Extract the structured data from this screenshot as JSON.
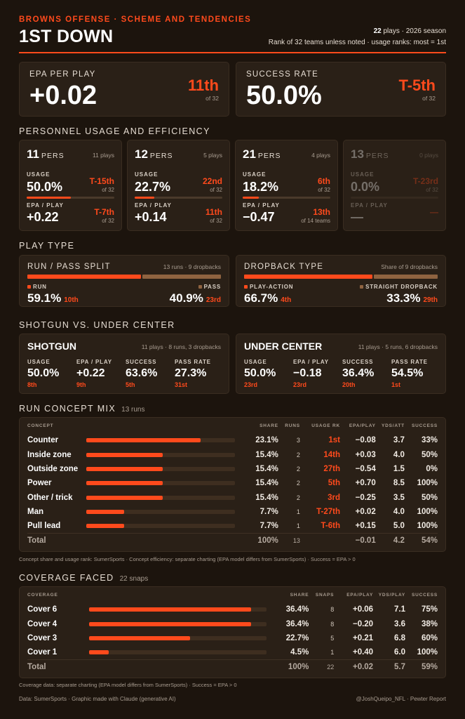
{
  "header": {
    "kicker": "BROWNS OFFENSE · SCHEME AND TENDENCIES",
    "title": "1ST DOWN",
    "plays": "22",
    "plays_suffix": " plays · 2026 season",
    "note": "Rank of 32 teams unless noted · usage ranks: most = 1st"
  },
  "epa": {
    "label": "EPA PER PLAY",
    "value": "+0.02",
    "rank": "11th",
    "of": "of 32"
  },
  "success": {
    "label": "SUCCESS RATE",
    "value": "50.0%",
    "rank": "T-5th",
    "of": "of 32"
  },
  "personnel": {
    "title": "PERSONNEL USAGE AND EFFICIENCY",
    "usage_label": "USAGE",
    "epa_label": "EPA / PLAY",
    "pers_word": "PERS",
    "groups": [
      {
        "num": "11",
        "plays": "11 plays",
        "usage": "50.0%",
        "usage_fill": 0.5,
        "usage_rank": "T-15th",
        "usage_of": "of 32",
        "epa": "+0.22",
        "epa_rank": "T-7th",
        "epa_of": "of 32"
      },
      {
        "num": "12",
        "plays": "5 plays",
        "usage": "22.7%",
        "usage_fill": 0.227,
        "usage_rank": "22nd",
        "usage_of": "of 32",
        "epa": "+0.14",
        "epa_rank": "11th",
        "epa_of": "of 32"
      },
      {
        "num": "21",
        "plays": "4 plays",
        "usage": "18.2%",
        "usage_fill": 0.182,
        "usage_rank": "6th",
        "usage_of": "of 32",
        "epa": "−0.47",
        "epa_rank": "13th",
        "epa_of": "of 14 teams"
      },
      {
        "num": "13",
        "plays": "0 plays",
        "usage": "0.0%",
        "usage_fill": 0,
        "usage_rank": "T-23rd",
        "usage_of": "of 32",
        "epa": "—",
        "epa_rank": "—",
        "epa_of": ""
      }
    ]
  },
  "play_type": {
    "title": "PLAY TYPE",
    "run_pass": {
      "title": "RUN / PASS SPLIT",
      "note": "13 runs · 9 dropbacks",
      "left_label": "RUN",
      "left_pct": "59.1%",
      "left_fill": 0.591,
      "left_rank": "10th",
      "right_label": "PASS",
      "right_pct": "40.9%",
      "right_rank": "23rd"
    },
    "dropback": {
      "title": "DROPBACK TYPE",
      "note": "Share of 9 dropbacks",
      "left_label": "PLAY-ACTION",
      "left_pct": "66.7%",
      "left_fill": 0.667,
      "left_rank": "4th",
      "right_label": "STRAIGHT DROPBACK",
      "right_pct": "33.3%",
      "right_rank": "29th"
    }
  },
  "formation": {
    "title": "SHOTGUN VS. UNDER CENTER",
    "cards": [
      {
        "title": "SHOTGUN",
        "note": "11 plays · 8 runs, 3 dropbacks",
        "stats": [
          {
            "label": "USAGE",
            "value": "50.0%",
            "rank": "8th"
          },
          {
            "label": "EPA / PLAY",
            "value": "+0.22",
            "rank": "9th"
          },
          {
            "label": "SUCCESS",
            "value": "63.6%",
            "rank": "5th"
          },
          {
            "label": "PASS RATE",
            "value": "27.3%",
            "rank": "31st"
          }
        ]
      },
      {
        "title": "UNDER CENTER",
        "note": "11 plays · 5 runs, 6 dropbacks",
        "stats": [
          {
            "label": "USAGE",
            "value": "50.0%",
            "rank": "23rd"
          },
          {
            "label": "EPA / PLAY",
            "value": "−0.18",
            "rank": "23rd"
          },
          {
            "label": "SUCCESS",
            "value": "36.4%",
            "rank": "20th"
          },
          {
            "label": "PASS RATE",
            "value": "54.5%",
            "rank": "1st"
          }
        ]
      }
    ]
  },
  "run_concepts": {
    "title": "RUN CONCEPT MIX",
    "sub": "13 runs",
    "columns": [
      "CONCEPT",
      "SHARE",
      "RUNS",
      "USAGE RK",
      "EPA/PLAY",
      "YDS/ATT",
      "SUCCESS"
    ],
    "rows": [
      {
        "name": "Counter",
        "share": "23.1%",
        "fill": 0.231,
        "runs": "3",
        "rank": "1st",
        "epa": "−0.08",
        "yds": "3.7",
        "succ": "33%"
      },
      {
        "name": "Inside zone",
        "share": "15.4%",
        "fill": 0.154,
        "runs": "2",
        "rank": "14th",
        "epa": "+0.03",
        "yds": "4.0",
        "succ": "50%"
      },
      {
        "name": "Outside zone",
        "share": "15.4%",
        "fill": 0.154,
        "runs": "2",
        "rank": "27th",
        "epa": "−0.54",
        "yds": "1.5",
        "succ": "0%"
      },
      {
        "name": "Power",
        "share": "15.4%",
        "fill": 0.154,
        "runs": "2",
        "rank": "5th",
        "epa": "+0.70",
        "yds": "8.5",
        "succ": "100%"
      },
      {
        "name": "Other / trick",
        "share": "15.4%",
        "fill": 0.154,
        "runs": "2",
        "rank": "3rd",
        "epa": "−0.25",
        "yds": "3.5",
        "succ": "50%"
      },
      {
        "name": "Man",
        "share": "7.7%",
        "fill": 0.077,
        "runs": "1",
        "rank": "T-27th",
        "epa": "+0.02",
        "yds": "4.0",
        "succ": "100%"
      },
      {
        "name": "Pull lead",
        "share": "7.7%",
        "fill": 0.077,
        "runs": "1",
        "rank": "T-6th",
        "epa": "+0.15",
        "yds": "5.0",
        "succ": "100%"
      }
    ],
    "total": {
      "name": "Total",
      "share": "100%",
      "runs": "13",
      "epa": "−0.01",
      "yds": "4.2",
      "succ": "54%"
    },
    "footnote": "Concept share and usage rank: SumerSports · Concept efficiency: separate charting (EPA model differs from SumerSports) · Success = EPA > 0"
  },
  "coverage": {
    "title": "COVERAGE FACED",
    "sub": "22 snaps",
    "columns": [
      "COVERAGE",
      "SHARE",
      "SNAPS",
      "EPA/PLAY",
      "YDS/PLAY",
      "SUCCESS"
    ],
    "rows": [
      {
        "name": "Cover 6",
        "share": "36.4%",
        "fill": 0.364,
        "snaps": "8",
        "epa": "+0.06",
        "yds": "7.1",
        "succ": "75%"
      },
      {
        "name": "Cover 4",
        "share": "36.4%",
        "fill": 0.364,
        "snaps": "8",
        "epa": "−0.20",
        "yds": "3.6",
        "succ": "38%"
      },
      {
        "name": "Cover 3",
        "share": "22.7%",
        "fill": 0.227,
        "snaps": "5",
        "epa": "+0.21",
        "yds": "6.8",
        "succ": "60%"
      },
      {
        "name": "Cover 1",
        "share": "4.5%",
        "fill": 0.045,
        "snaps": "1",
        "epa": "+0.40",
        "yds": "6.0",
        "succ": "100%"
      }
    ],
    "total": {
      "name": "Total",
      "share": "100%",
      "snaps": "22",
      "epa": "+0.02",
      "yds": "5.7",
      "succ": "59%"
    },
    "footnote": "Coverage data: separate charting (EPA model differs from SumerSports) · Success = EPA > 0"
  },
  "footer": {
    "left": "Data: SumerSports · Graphic made with Claude (generative AI)",
    "right": "@JoshQueipo_NFL · Pewter Report"
  },
  "colors": {
    "accent": "#ff4a1c",
    "secondary": "#8f6340",
    "background": "#1c140d",
    "card": "#2a2017"
  }
}
